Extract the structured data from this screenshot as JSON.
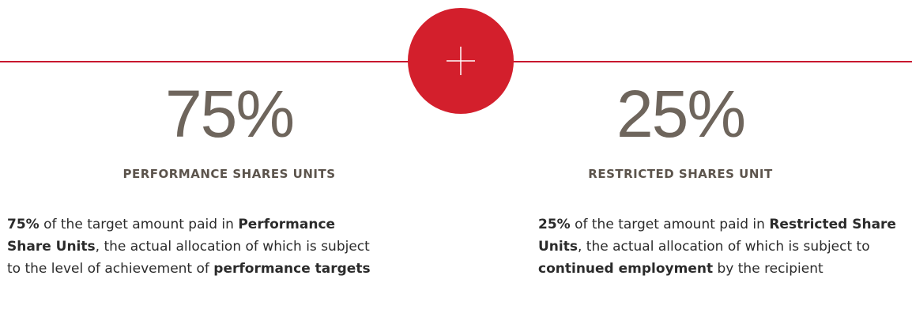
{
  "columns": [
    {
      "figure": "75%",
      "heading": "PERFORMANCE SHARES UNITS",
      "description": [
        {
          "text": "75%",
          "bold": true
        },
        {
          "text": " of the target amount paid in ",
          "bold": false
        },
        {
          "text": "Performance Share Units",
          "bold": true
        },
        {
          "text": ", the actual allocation of which is subject to the level of achievement of ",
          "bold": false
        },
        {
          "text": "performance targets",
          "bold": true
        }
      ]
    },
    {
      "figure": "25%",
      "heading": "RESTRICTED SHARES UNIT",
      "description": [
        {
          "text": "25%",
          "bold": true
        },
        {
          "text": " of the target amount paid in ",
          "bold": false
        },
        {
          "text": "Restricted Share Units",
          "bold": true
        },
        {
          "text": ", the actual allocation of which is subject to ",
          "bold": false
        },
        {
          "text": "continued employment",
          "bold": true
        },
        {
          "text": " by the recipient",
          "bold": false
        }
      ]
    }
  ]
}
